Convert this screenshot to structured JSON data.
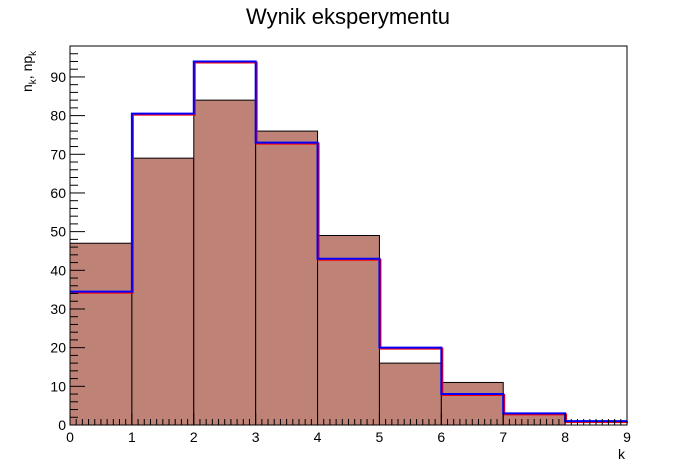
{
  "chart_data": {
    "type": "bar",
    "title": "Wynik eksperymentu",
    "xlabel": "k",
    "ylabel_main": "n",
    "ylabel_sub1": "k",
    "ylabel_mid": ", np",
    "ylabel_sub2": "k",
    "xlim": [
      0,
      9
    ],
    "ylim": [
      0,
      98
    ],
    "x_ticks": [
      0,
      1,
      2,
      3,
      4,
      5,
      6,
      7,
      8,
      9
    ],
    "y_ticks": [
      0,
      10,
      20,
      30,
      40,
      50,
      60,
      70,
      80,
      90
    ],
    "grid": false,
    "series": [
      {
        "kind": "filled-histogram",
        "bin_edges": [
          0,
          1,
          2,
          3,
          4,
          5,
          6,
          7,
          8,
          9
        ],
        "values": [
          47,
          69,
          84,
          76,
          49,
          16,
          11,
          3,
          0
        ],
        "fill_color": "#bf8277",
        "edge_color": "#000000"
      },
      {
        "kind": "step-line",
        "bin_edges": [
          0,
          1,
          2,
          3,
          4,
          5,
          6,
          7,
          8,
          9
        ],
        "values": [
          34.5,
          80.5,
          94,
          73,
          43,
          20,
          8,
          3,
          1
        ],
        "line_color": "#0000ff",
        "shadow_color": "#ff0000"
      }
    ]
  }
}
